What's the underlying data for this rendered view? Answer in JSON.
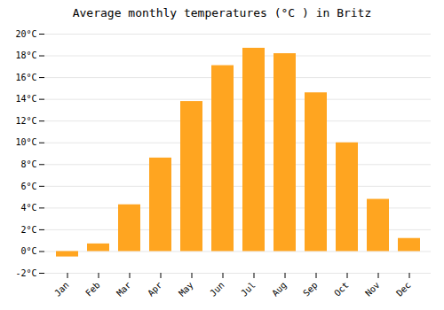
{
  "chart_data": {
    "type": "bar",
    "title": "Average monthly temperatures (°C ) in Britz",
    "categories": [
      "Jan",
      "Feb",
      "Mar",
      "Apr",
      "May",
      "Jun",
      "Jul",
      "Aug",
      "Sep",
      "Oct",
      "Nov",
      "Dec"
    ],
    "values": [
      -0.5,
      0.7,
      4.3,
      8.6,
      13.8,
      17.1,
      18.7,
      18.2,
      14.6,
      10.0,
      4.8,
      1.2
    ],
    "color": "#FFA520",
    "ylim": [
      -2,
      20
    ],
    "yticks": [
      {
        "value": -2,
        "label": "-2°C"
      },
      {
        "value": 0,
        "label": "0°C"
      },
      {
        "value": 2,
        "label": "2°C"
      },
      {
        "value": 4,
        "label": "4°C"
      },
      {
        "value": 6,
        "label": "6°C"
      },
      {
        "value": 8,
        "label": "8°C"
      },
      {
        "value": 10,
        "label": "10°C"
      },
      {
        "value": 12,
        "label": "12°C"
      },
      {
        "value": 14,
        "label": "14°C"
      },
      {
        "value": 16,
        "label": "16°C"
      },
      {
        "value": 18,
        "label": "18°C"
      },
      {
        "value": 20,
        "label": "20°C"
      }
    ],
    "grid": true
  }
}
